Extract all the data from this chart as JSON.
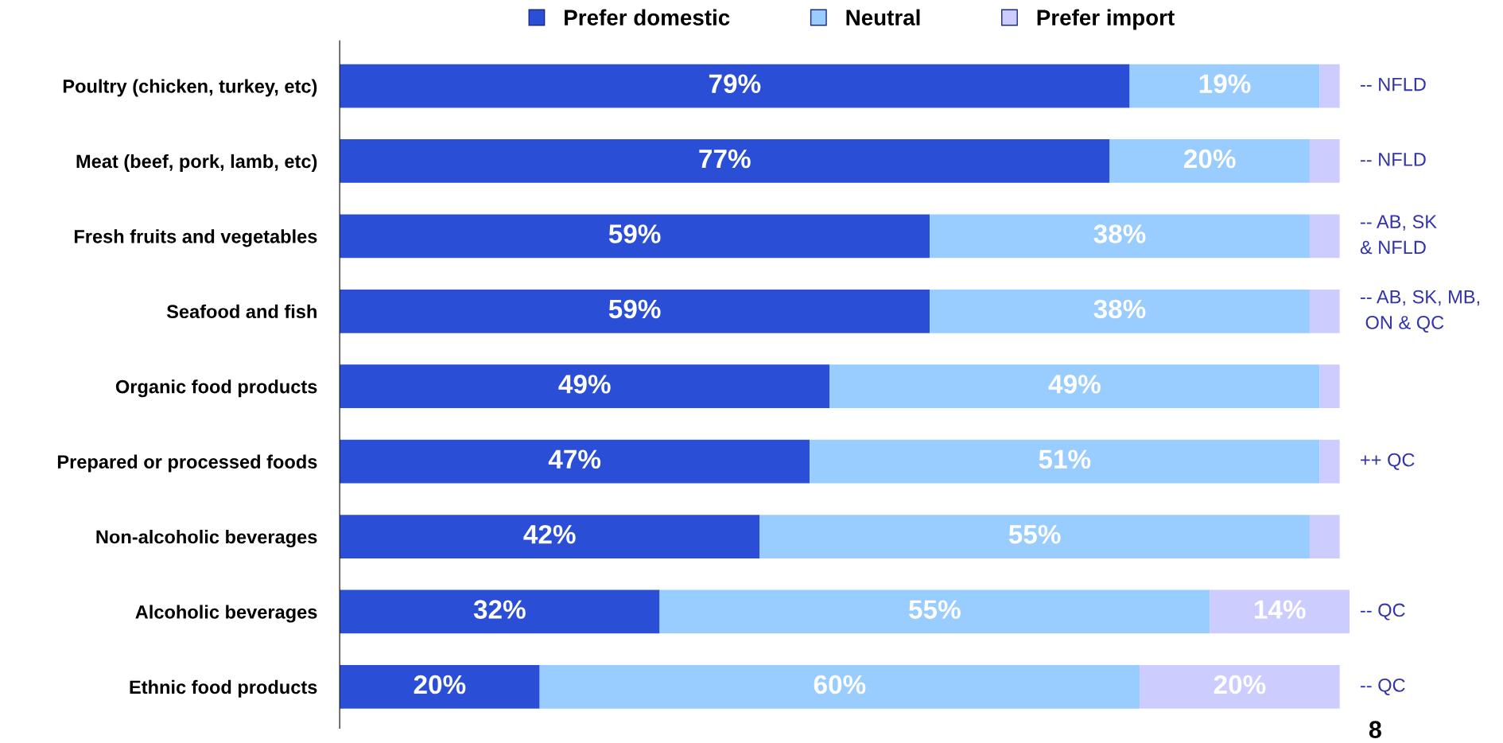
{
  "chart_data": {
    "type": "bar",
    "orientation": "horizontal",
    "stacked": true,
    "categories": [
      "Poultry (chicken, turkey, etc)",
      "Meat (beef, pork, lamb, etc)",
      "Fresh fruits and vegetables",
      "Seafood and fish",
      "Organic food products",
      "Prepared or processed foods",
      "Non-alcoholic beverages",
      "Alcoholic beverages",
      "Ethnic food products"
    ],
    "series": [
      {
        "name": "Prefer domestic",
        "color": "#2a4fd6",
        "values": [
          79,
          77,
          59,
          59,
          49,
          47,
          42,
          32,
          20
        ],
        "value_labels": [
          "79%",
          "77%",
          "59%",
          "59%",
          "49%",
          "47%",
          "42%",
          "32%",
          "20%"
        ]
      },
      {
        "name": "Neutral",
        "color": "#99ccff",
        "values": [
          19,
          20,
          38,
          38,
          49,
          51,
          55,
          55,
          60
        ],
        "value_labels": [
          "19%",
          "20%",
          "38%",
          "38%",
          "49%",
          "51%",
          "55%",
          "55%",
          "60%"
        ]
      },
      {
        "name": "Prefer import",
        "color": "#ccccff",
        "values": [
          2,
          3,
          3,
          3,
          2,
          2,
          3,
          14,
          20
        ],
        "value_labels": [
          null,
          null,
          null,
          null,
          null,
          null,
          null,
          "14%",
          "20%"
        ]
      }
    ],
    "xlim": [
      0,
      101
    ],
    "tick_labels": "y",
    "legend": "top",
    "marker": "square",
    "grid": false,
    "annotations": [
      "-- NFLD",
      "-- NFLD",
      "-- AB, SK\n& NFLD",
      "-- AB, SK, MB,\n ON & QC",
      "++ QC",
      "-- QC",
      "-- QC",
      "8"
    ]
  }
}
